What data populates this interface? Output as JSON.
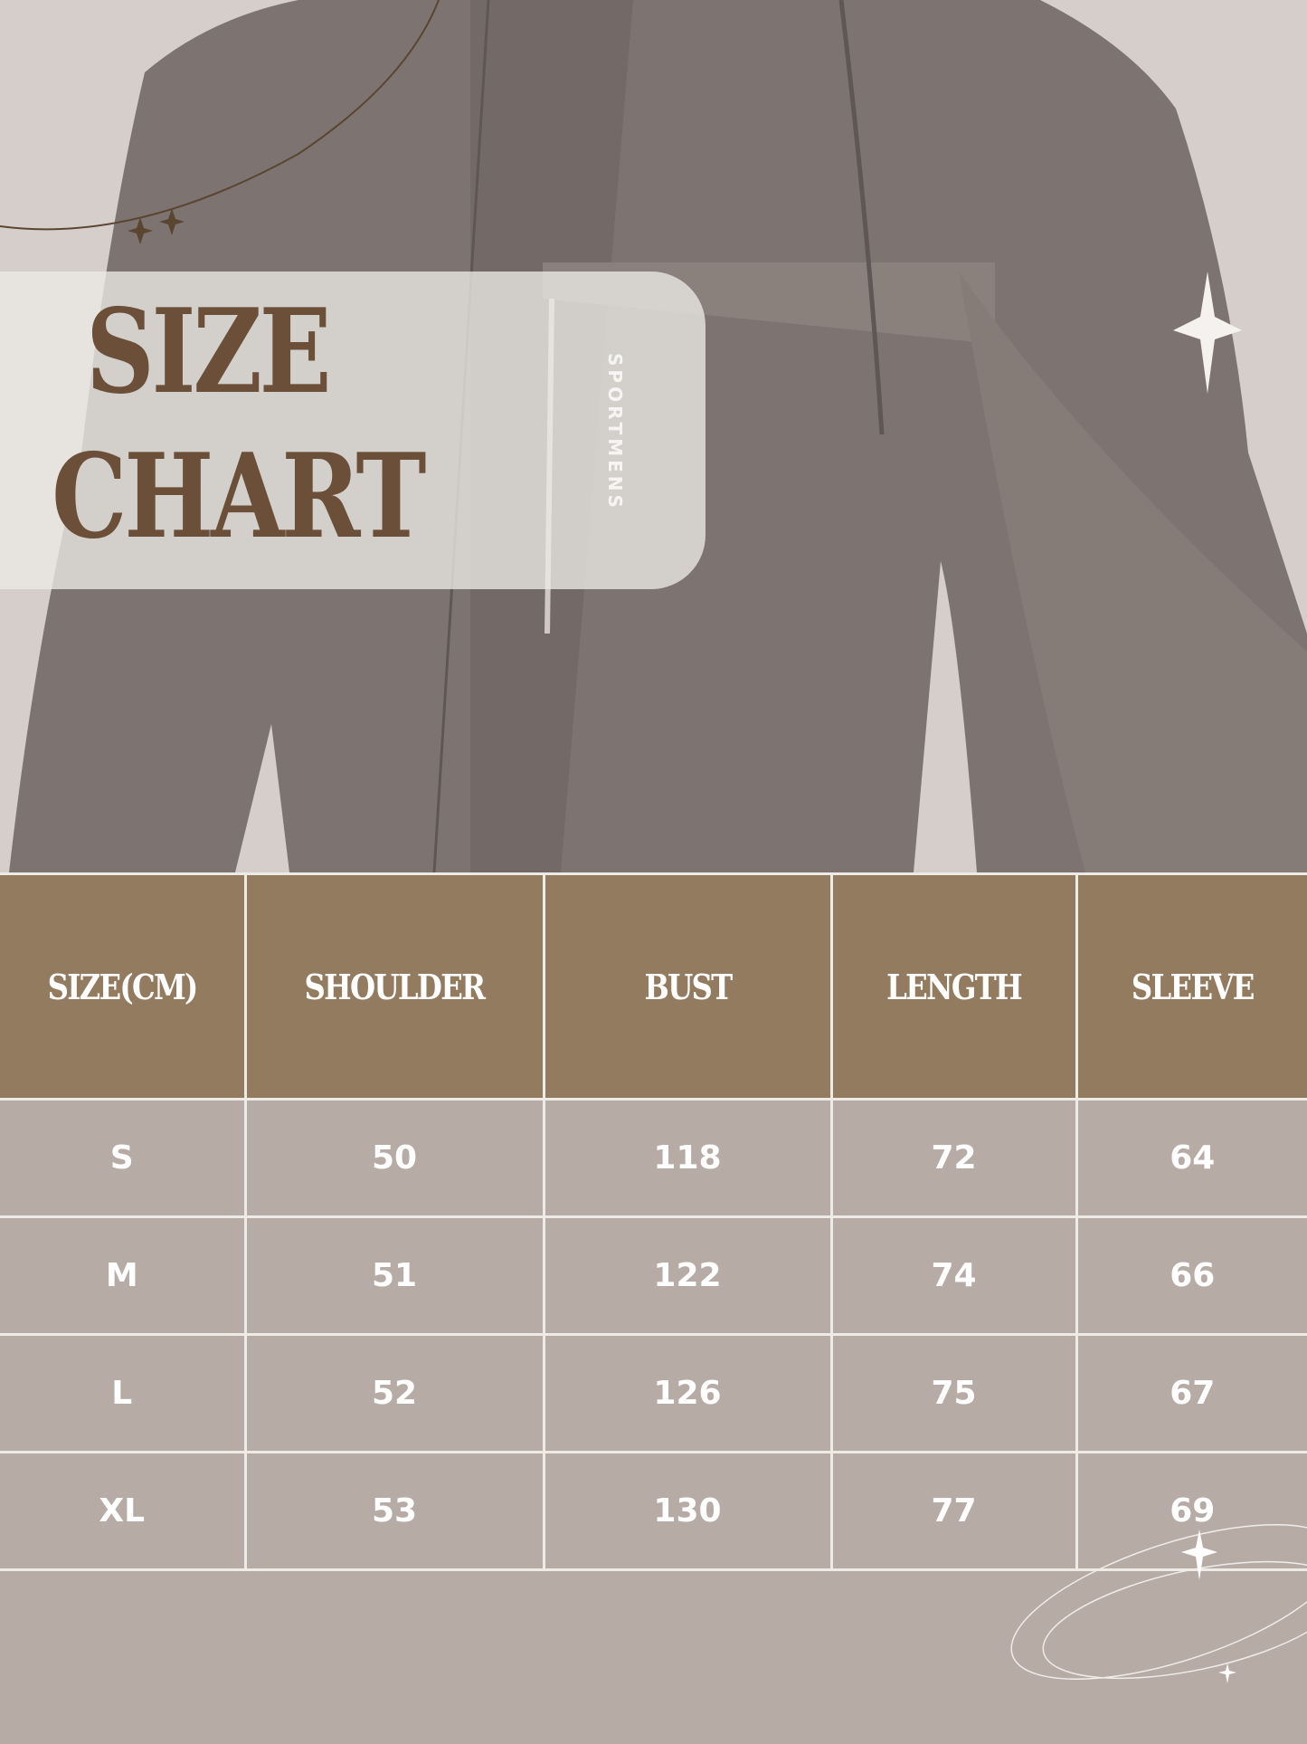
{
  "title": {
    "line1": "SIZE",
    "line2": "CHART"
  },
  "photo": {
    "brand_text": "SPORTMENS"
  },
  "table": {
    "headers": [
      "SIZE(CM)",
      "SHOULDER",
      "BUST",
      "LENGTH",
      "SLEEVE"
    ],
    "rows": [
      [
        "S",
        "50",
        "118",
        "72",
        "64"
      ],
      [
        "M",
        "51",
        "122",
        "74",
        "66"
      ],
      [
        "L",
        "52",
        "126",
        "75",
        "67"
      ],
      [
        "XL",
        "53",
        "130",
        "77",
        "69"
      ]
    ]
  },
  "colors": {
    "header_bg": "#937b60",
    "cell_bg": "#b7aba6",
    "title_text": "#6b4f38",
    "background": "#d6cecb"
  }
}
